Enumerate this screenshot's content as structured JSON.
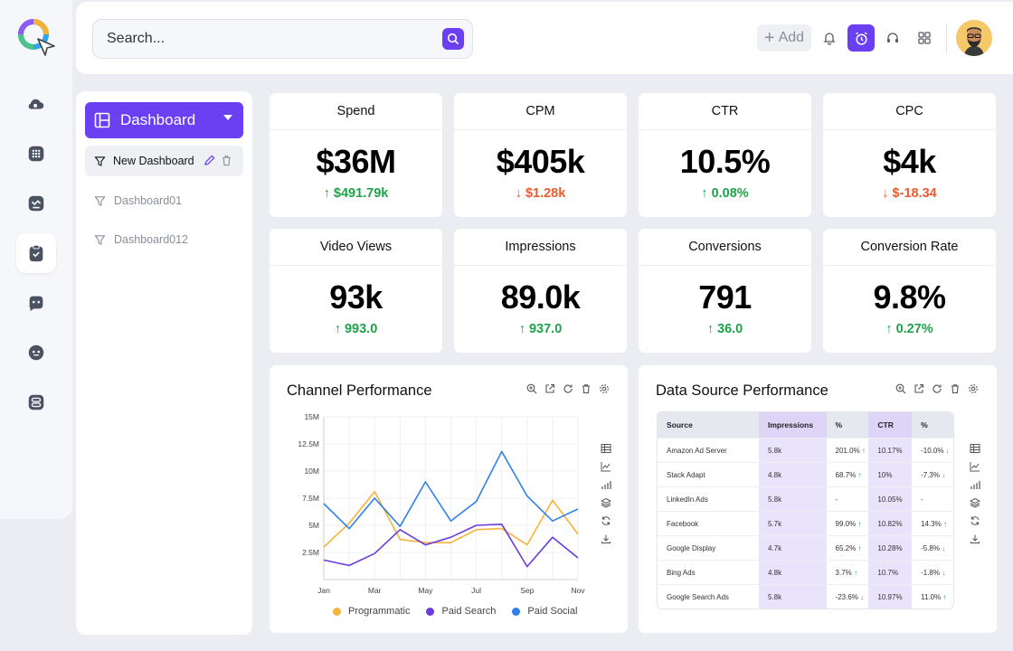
{
  "search": {
    "placeholder": "Search..."
  },
  "topbar": {
    "add_label": "Add"
  },
  "sidebar": {
    "dashboard_label": "Dashboard",
    "items": [
      {
        "label": "New Dashboard"
      },
      {
        "label": "Dashboard01"
      },
      {
        "label": "Dashboard012"
      }
    ]
  },
  "kpis": [
    {
      "title": "Spend",
      "value": "$36M",
      "delta": "$491.79k",
      "direction": "up"
    },
    {
      "title": "CPM",
      "value": "$405k",
      "delta": "$1.28k",
      "direction": "down"
    },
    {
      "title": "CTR",
      "value": "10.5%",
      "delta": "0.08%",
      "direction": "up"
    },
    {
      "title": "CPC",
      "value": "$4k",
      "delta": "$-18.34",
      "direction": "down"
    },
    {
      "title": "Video Views",
      "value": "93k",
      "delta": "993.0",
      "direction": "up"
    },
    {
      "title": "Impressions",
      "value": "89.0k",
      "delta": "937.0",
      "direction": "up"
    },
    {
      "title": "Conversions",
      "value": "791",
      "delta": "36.0",
      "direction": "up"
    },
    {
      "title": "Conversion Rate",
      "value": "9.8%",
      "delta": "0.27%",
      "direction": "up"
    }
  ],
  "channel_panel": {
    "title": "Channel Performance"
  },
  "datasource_panel": {
    "title": "Data Source Performance",
    "columns": [
      "Source",
      "Impressions",
      "%",
      "CTR",
      "%"
    ],
    "rows": [
      {
        "source": "Amazon Ad Server",
        "impressions": "5.8k",
        "pct1": "201.0%",
        "pct1_dir": "up",
        "ctr": "10.17%",
        "pct2": "-10.0%",
        "pct2_dir": "down"
      },
      {
        "source": "Stack Adapt",
        "impressions": "4.8k",
        "pct1": "68.7%",
        "pct1_dir": "up",
        "ctr": "10%",
        "pct2": "-7.3%",
        "pct2_dir": "down"
      },
      {
        "source": "LinkedIn Ads",
        "impressions": "5.8k",
        "pct1": "-",
        "pct1_dir": "",
        "ctr": "10.05%",
        "pct2": "-",
        "pct2_dir": ""
      },
      {
        "source": "Facebook",
        "impressions": "5.7k",
        "pct1": "99.0%",
        "pct1_dir": "up",
        "ctr": "10.82%",
        "pct2": "14.3%",
        "pct2_dir": "up"
      },
      {
        "source": "Google Display",
        "impressions": "4.7k",
        "pct1": "65.2%",
        "pct1_dir": "up",
        "ctr": "10.28%",
        "pct2": "-5.8%",
        "pct2_dir": "down"
      },
      {
        "source": "Bing Ads",
        "impressions": "4.8k",
        "pct1": "3.7%",
        "pct1_dir": "up",
        "ctr": "10.7%",
        "pct2": "-1.8%",
        "pct2_dir": "down"
      },
      {
        "source": "Google Search Ads",
        "impressions": "5.8k",
        "pct1": "-23.6%",
        "pct1_dir": "down",
        "ctr": "10.97%",
        "pct2": "11.0%",
        "pct2_dir": "up"
      }
    ]
  },
  "colors": {
    "accent": "#6b3ff2",
    "up": "#1ea34a",
    "down": "#ee5a2e",
    "programmatic": "#f5b43a",
    "paid_search": "#6a3ce0",
    "paid_social": "#2f80ed"
  },
  "chart_data": {
    "type": "line",
    "x": [
      "Jan",
      "Feb",
      "Mar",
      "Apr",
      "May",
      "Jun",
      "Jul",
      "Aug",
      "Sep",
      "Oct",
      "Nov"
    ],
    "x_tick_labels": [
      "Jan",
      "Mar",
      "May",
      "Jul",
      "Sep",
      "Nov"
    ],
    "y_tick_labels": [
      "2.5M",
      "5M",
      "7.5M",
      "10M",
      "12.5M",
      "15M"
    ],
    "ylim": [
      0,
      15000000
    ],
    "grid": true,
    "legend_position": "bottom",
    "series": [
      {
        "name": "Programmatic",
        "color": "#f5b43a",
        "values": [
          3000000,
          5200000,
          8100000,
          3700000,
          3400000,
          3400000,
          4600000,
          4700000,
          3200000,
          7300000,
          4200000
        ]
      },
      {
        "name": "Paid Search",
        "color": "#6a3ce0",
        "values": [
          1800000,
          1300000,
          2400000,
          4600000,
          3200000,
          3900000,
          5000000,
          5100000,
          1200000,
          3900000,
          2000000
        ]
      },
      {
        "name": "Paid Social",
        "color": "#2f80ed",
        "values": [
          7000000,
          4700000,
          7500000,
          4900000,
          9000000,
          5400000,
          7200000,
          11800000,
          7700000,
          5400000,
          6500000
        ]
      }
    ]
  }
}
